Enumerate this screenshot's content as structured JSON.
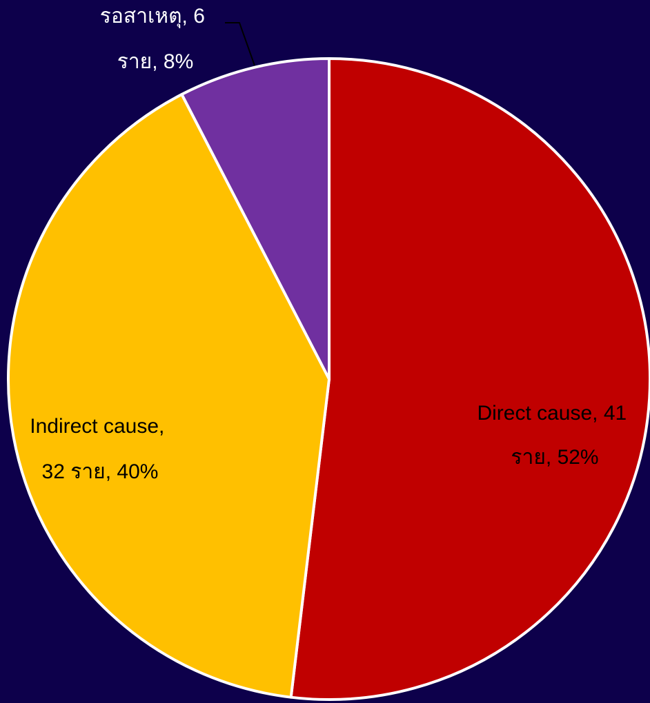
{
  "chart_data": {
    "type": "pie",
    "title": "",
    "background_color": "#0d004b",
    "slice_border_color": "#ffffff",
    "slices": [
      {
        "category": "Direct cause",
        "value": 41,
        "unit": "ราย",
        "percent": 52,
        "color": "#c00000",
        "label_color": "#000000",
        "label_line1": "Direct cause, 41",
        "label_line2": "ราย, 52%"
      },
      {
        "category": "Indirect cause",
        "value": 32,
        "unit": "ราย",
        "percent": 40,
        "color": "#ffc000",
        "label_color": "#000000",
        "label_line1": "Indirect cause,",
        "label_line2": "32 ราย, 40%"
      },
      {
        "category": "รอสาเหตุ",
        "value": 6,
        "unit": "ราย",
        "percent": 8,
        "color": "#7030a0",
        "label_color": "#ffffff",
        "label_line1": "รอสาเหตุ, 6",
        "label_line2": "ราย, 8%"
      }
    ]
  }
}
